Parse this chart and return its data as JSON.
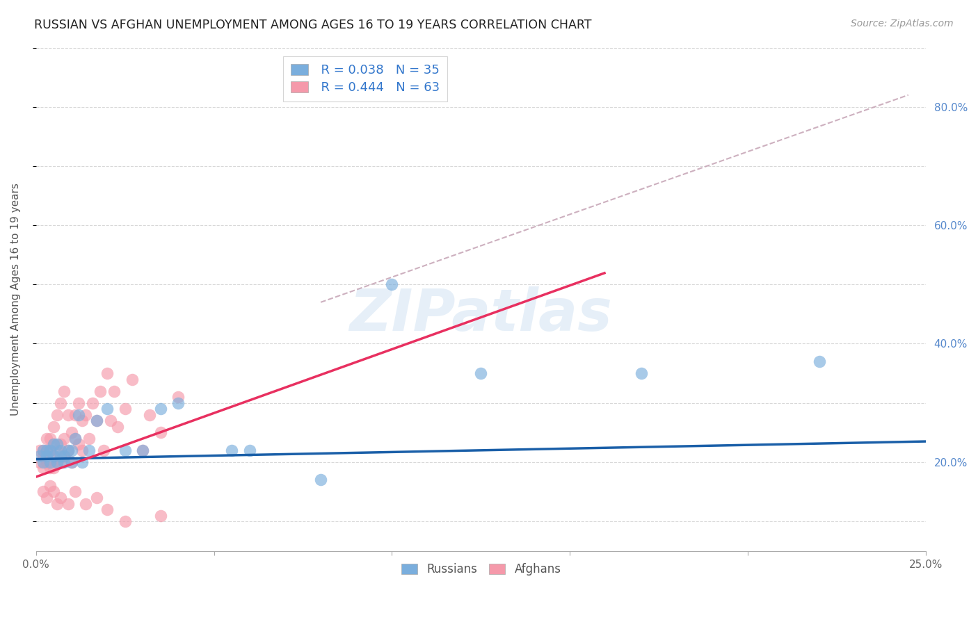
{
  "title": "RUSSIAN VS AFGHAN UNEMPLOYMENT AMONG AGES 16 TO 19 YEARS CORRELATION CHART",
  "source": "Source: ZipAtlas.com",
  "ylabel": "Unemployment Among Ages 16 to 19 years",
  "xlim": [
    0.0,
    0.25
  ],
  "ylim": [
    0.05,
    0.9
  ],
  "yticks_right": [
    0.2,
    0.4,
    0.6,
    0.8
  ],
  "ytick_labels_right": [
    "20.0%",
    "40.0%",
    "60.0%",
    "80.0%"
  ],
  "xtick_positions": [
    0.0,
    0.05,
    0.1,
    0.15,
    0.2,
    0.25
  ],
  "xtick_labels": [
    "0.0%",
    "",
    "",
    "",
    "",
    "25.0%"
  ],
  "background_color": "#ffffff",
  "grid_color": "#d8d8d8",
  "watermark": "ZIPatlas",
  "legend_r1": "R = 0.038",
  "legend_n1": "N = 35",
  "legend_r2": "R = 0.444",
  "legend_n2": "N = 63",
  "russian_color": "#7aaedd",
  "afghan_color": "#f599aa",
  "russian_line_color": "#1a5fa8",
  "afghan_line_color": "#e83060",
  "dashed_line_color": "#c8a8b8",
  "title_color": "#222222",
  "right_label_color": "#5588cc",
  "russians_x": [
    0.001,
    0.002,
    0.002,
    0.003,
    0.003,
    0.004,
    0.004,
    0.005,
    0.005,
    0.006,
    0.006,
    0.007,
    0.007,
    0.008,
    0.008,
    0.009,
    0.01,
    0.01,
    0.011,
    0.012,
    0.013,
    0.015,
    0.017,
    0.02,
    0.025,
    0.03,
    0.035,
    0.04,
    0.055,
    0.06,
    0.08,
    0.1,
    0.125,
    0.17,
    0.22
  ],
  "russians_y": [
    0.21,
    0.2,
    0.22,
    0.21,
    0.22,
    0.2,
    0.22,
    0.21,
    0.23,
    0.2,
    0.23,
    0.21,
    0.22,
    0.21,
    0.2,
    0.22,
    0.22,
    0.2,
    0.24,
    0.28,
    0.2,
    0.22,
    0.27,
    0.29,
    0.22,
    0.22,
    0.29,
    0.3,
    0.22,
    0.22,
    0.17,
    0.5,
    0.35,
    0.35,
    0.37
  ],
  "afghans_x": [
    0.001,
    0.001,
    0.002,
    0.002,
    0.002,
    0.003,
    0.003,
    0.003,
    0.004,
    0.004,
    0.004,
    0.005,
    0.005,
    0.005,
    0.005,
    0.006,
    0.006,
    0.006,
    0.007,
    0.007,
    0.007,
    0.008,
    0.008,
    0.008,
    0.009,
    0.009,
    0.01,
    0.01,
    0.011,
    0.011,
    0.012,
    0.012,
    0.013,
    0.013,
    0.014,
    0.015,
    0.016,
    0.017,
    0.018,
    0.019,
    0.02,
    0.021,
    0.022,
    0.023,
    0.025,
    0.027,
    0.03,
    0.032,
    0.035,
    0.04,
    0.002,
    0.003,
    0.004,
    0.005,
    0.006,
    0.007,
    0.009,
    0.011,
    0.014,
    0.017,
    0.02,
    0.025,
    0.035
  ],
  "afghans_y": [
    0.22,
    0.2,
    0.21,
    0.19,
    0.22,
    0.2,
    0.22,
    0.24,
    0.19,
    0.22,
    0.24,
    0.19,
    0.21,
    0.23,
    0.26,
    0.2,
    0.22,
    0.28,
    0.2,
    0.23,
    0.3,
    0.21,
    0.24,
    0.32,
    0.22,
    0.28,
    0.2,
    0.25,
    0.24,
    0.28,
    0.23,
    0.3,
    0.22,
    0.27,
    0.28,
    0.24,
    0.3,
    0.27,
    0.32,
    0.22,
    0.35,
    0.27,
    0.32,
    0.26,
    0.29,
    0.34,
    0.22,
    0.28,
    0.25,
    0.31,
    0.15,
    0.14,
    0.16,
    0.15,
    0.13,
    0.14,
    0.13,
    0.15,
    0.13,
    0.14,
    0.12,
    0.1,
    0.11
  ],
  "russian_trendline_x": [
    0.0,
    0.25
  ],
  "russian_trendline_y": [
    0.205,
    0.235
  ],
  "afghan_trendline_x": [
    0.0,
    0.16
  ],
  "afghan_trendline_y": [
    0.175,
    0.52
  ],
  "dashed_line_x": [
    0.08,
    0.245
  ],
  "dashed_line_y": [
    0.47,
    0.82
  ]
}
